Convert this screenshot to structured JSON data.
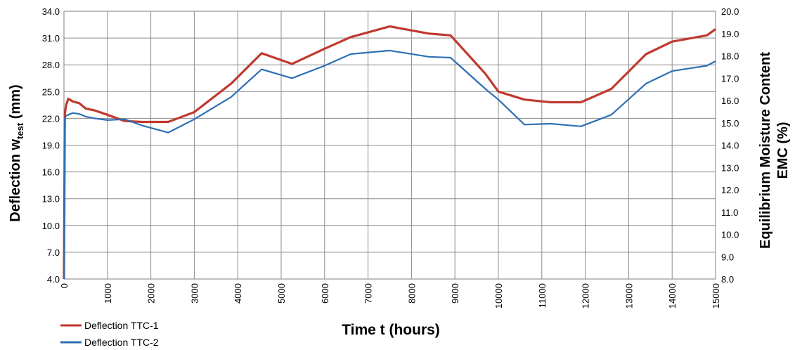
{
  "chart_data": {
    "type": "line",
    "title": "",
    "xlabel": "Time t (hours)",
    "ylabel_left": {
      "main": "Deflection w",
      "subscript": "test",
      "suffix": " (mm)"
    },
    "ylabel_right": [
      "Equilibrium Moisture Content",
      "EMC (%)"
    ],
    "xlim": [
      0,
      15000
    ],
    "ylim_left": [
      4.0,
      34.0
    ],
    "ylim_right": [
      8.0,
      20.0
    ],
    "x_ticks": [
      "0",
      "1000",
      "2000",
      "3000",
      "4000",
      "5000",
      "6000",
      "7000",
      "8000",
      "9000",
      "10000",
      "11000",
      "12000",
      "13000",
      "14000",
      "15000"
    ],
    "y_ticks_left": [
      "4.0",
      "7.0",
      "10.0",
      "13.0",
      "16.0",
      "19.0",
      "22.0",
      "25.0",
      "28.0",
      "31.0",
      "34.0"
    ],
    "y_ticks_right": [
      "8.0",
      "9.0",
      "10.0",
      "11.0",
      "12.0",
      "13.0",
      "14.0",
      "15.0",
      "16.0",
      "17.0",
      "18.0",
      "19.0",
      "20.0"
    ],
    "grid": true,
    "legend_position": "bottom-left",
    "series": [
      {
        "name": "Deflection TTC-1",
        "color": "#c0392f",
        "axis": "left",
        "x": [
          0,
          20,
          50,
          100,
          200,
          350,
          500,
          700,
          1000,
          1400,
          1800,
          2400,
          3000,
          3850,
          4550,
          5250,
          6000,
          6600,
          7500,
          8400,
          8900,
          9700,
          10000,
          10600,
          11200,
          11900,
          12600,
          13400,
          14000,
          14800,
          15000
        ],
        "y": [
          4.0,
          22.5,
          23.5,
          24.2,
          23.9,
          23.7,
          23.1,
          22.9,
          22.4,
          21.7,
          21.6,
          21.6,
          22.7,
          25.9,
          29.3,
          28.1,
          29.8,
          31.1,
          32.3,
          31.5,
          31.3,
          27.0,
          25.0,
          24.1,
          23.8,
          23.8,
          25.3,
          29.2,
          30.6,
          31.3,
          32.0
        ]
      },
      {
        "name": "Deflection TTC-2",
        "color": "#2f6fb5",
        "axis": "left",
        "x": [
          0,
          20,
          50,
          100,
          200,
          350,
          500,
          700,
          1000,
          1400,
          1800,
          2400,
          3000,
          3850,
          4550,
          5250,
          6000,
          6600,
          7500,
          8400,
          8900,
          9700,
          10000,
          10600,
          11200,
          11900,
          12600,
          13400,
          14000,
          14800,
          15000
        ],
        "y": [
          4.0,
          22.0,
          22.3,
          22.4,
          22.6,
          22.5,
          22.2,
          22.0,
          21.8,
          21.9,
          21.2,
          20.4,
          21.9,
          24.4,
          27.5,
          26.5,
          27.9,
          29.2,
          29.6,
          28.9,
          28.8,
          25.3,
          24.1,
          21.3,
          21.4,
          21.1,
          22.4,
          25.9,
          27.3,
          27.9,
          28.4
        ]
      }
    ]
  }
}
